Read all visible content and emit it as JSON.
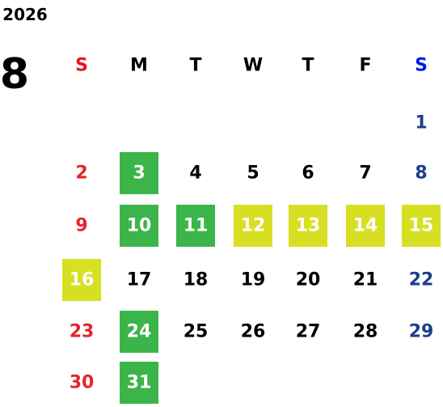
{
  "calendar": {
    "year": "2026",
    "month": "8",
    "weekdays": [
      "S",
      "M",
      "T",
      "W",
      "T",
      "F",
      "S"
    ],
    "weeks": [
      [
        null,
        null,
        null,
        null,
        null,
        null,
        "1"
      ],
      [
        "2",
        {
          "day": "3",
          "fill": "#3bb54a"
        },
        "4",
        "5",
        "6",
        "7",
        "8"
      ],
      [
        "9",
        {
          "day": "10",
          "fill": "#3bb54a"
        },
        {
          "day": "11",
          "fill": "#3bb54a"
        },
        {
          "day": "12",
          "fill": "#d7df23"
        },
        {
          "day": "13",
          "fill": "#d7df23"
        },
        {
          "day": "14",
          "fill": "#d7df23"
        },
        {
          "day": "15",
          "fill": "#d7df23"
        }
      ],
      [
        {
          "day": "16",
          "fill": "#d7df23"
        },
        "17",
        "18",
        "19",
        "20",
        "21",
        "22"
      ],
      [
        "23",
        {
          "day": "24",
          "fill": "#3bb54a"
        },
        "25",
        "26",
        "27",
        "28",
        "29"
      ],
      [
        "30",
        {
          "day": "31",
          "fill": "#3bb54a"
        },
        null,
        null,
        null,
        null,
        null
      ]
    ]
  }
}
